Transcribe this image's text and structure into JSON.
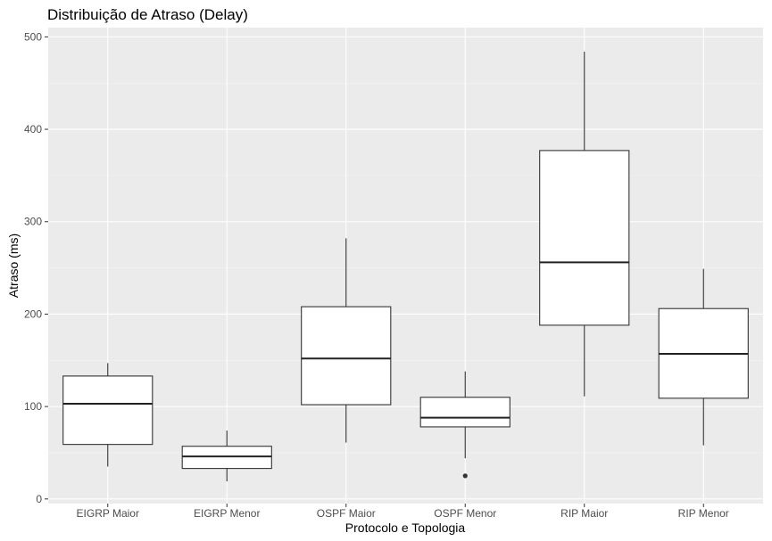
{
  "chart_data": {
    "type": "boxplot",
    "title": "Distribuição de Atraso (Delay)",
    "xlabel": "Protocolo e Topologia",
    "ylabel": "Atraso (ms)",
    "ylim": [
      -5,
      510
    ],
    "yticks": [
      0,
      100,
      200,
      300,
      400,
      500
    ],
    "grid": true,
    "categories": [
      "EIGRP Maior",
      "EIGRP Menor",
      "OSPF Maior",
      "OSPF Menor",
      "RIP Maior",
      "RIP Menor"
    ],
    "boxes": [
      {
        "category": "EIGRP Maior",
        "whisker_low": 35,
        "q1": 59,
        "median": 103,
        "q3": 133,
        "whisker_high": 147,
        "outliers": []
      },
      {
        "category": "EIGRP Menor",
        "whisker_low": 19,
        "q1": 33,
        "median": 46,
        "q3": 57,
        "whisker_high": 74,
        "outliers": []
      },
      {
        "category": "OSPF Maior",
        "whisker_low": 61,
        "q1": 102,
        "median": 152,
        "q3": 208,
        "whisker_high": 282,
        "outliers": []
      },
      {
        "category": "OSPF Menor",
        "whisker_low": 44,
        "q1": 78,
        "median": 88,
        "q3": 110,
        "whisker_high": 138,
        "outliers": [
          25
        ]
      },
      {
        "category": "RIP Maior",
        "whisker_low": 111,
        "q1": 188,
        "median": 256,
        "q3": 377,
        "whisker_high": 484,
        "outliers": []
      },
      {
        "category": "RIP Menor",
        "whisker_low": 58,
        "q1": 109,
        "median": 157,
        "q3": 206,
        "whisker_high": 249,
        "outliers": []
      }
    ]
  }
}
